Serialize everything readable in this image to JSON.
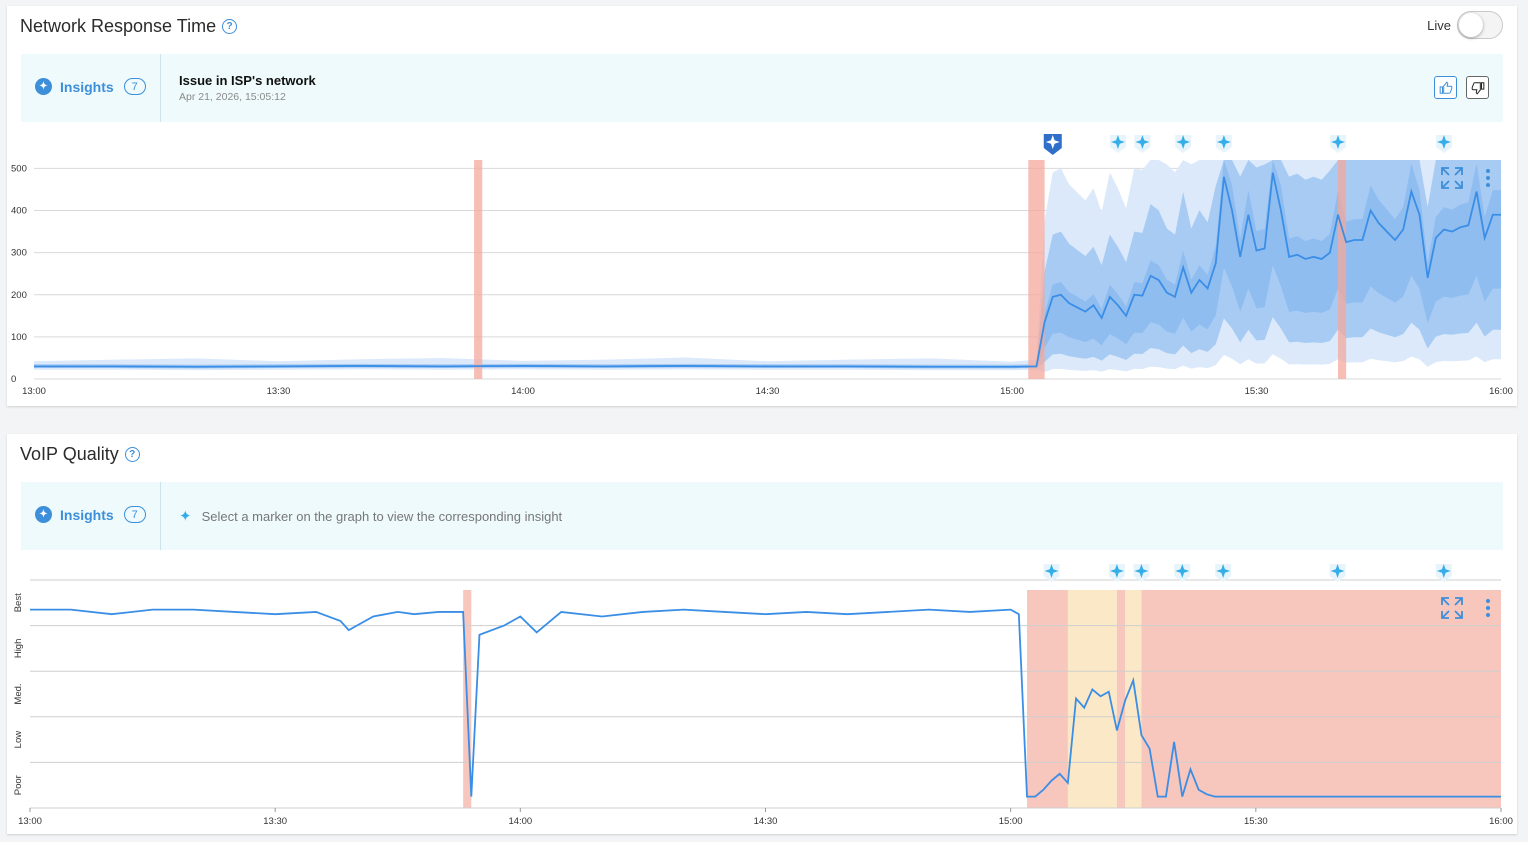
{
  "panel1": {
    "title": "Network Response Time",
    "live_label": "Live",
    "live_on": false,
    "insights": {
      "label": "Insights",
      "count": "7",
      "title": "Issue in ISP's network",
      "timestamp": "Apr 21, 2026, 15:05:12"
    }
  },
  "panel2": {
    "title": "VoIP Quality",
    "insights": {
      "label": "Insights",
      "count": "7",
      "hint": "Select a marker on the graph to view the corresponding insight"
    }
  },
  "icons": {
    "help": "help-circle-icon",
    "insights": "sparkle-logo-icon",
    "thumbs_up": "thumbs-up-icon",
    "thumbs_down": "thumbs-down-icon",
    "marker": "insight-marker-icon",
    "expand": "expand-icon",
    "menu": "more-vertical-icon"
  },
  "colors": {
    "accent": "#3d8fd9",
    "line": "#3a8ee6",
    "band_outer": "#dbe9fb",
    "band_mid": "#a8cbf4",
    "band_inner": "#8fbdf0",
    "issue_red": "#f6bcb2",
    "issue_red_strong": "#f3a89c",
    "warning_yellow": "#fbe8c6",
    "marker": "#35aee8"
  },
  "chart_data": [
    {
      "type": "area",
      "title": "Network Response Time",
      "x_ticks": [
        "13:00",
        "13:30",
        "14:00",
        "14:30",
        "15:00",
        "15:30",
        "16:00"
      ],
      "y_ticks": [
        0,
        100,
        200,
        300,
        400,
        500
      ],
      "xlim": [
        "13:00",
        "16:00"
      ],
      "ylim": [
        0,
        520
      ],
      "grid": true,
      "issue_ranges": [
        [
          "13:54",
          "13:55"
        ],
        [
          "15:02",
          "15:04"
        ],
        [
          "15:40",
          "15:41"
        ]
      ],
      "insight_markers": [
        "15:05",
        "15:13",
        "15:16",
        "15:21",
        "15:26",
        "15:40",
        "15:53"
      ],
      "selected_marker": "15:05",
      "series": [
        {
          "x": [
            "13:00",
            "13:10",
            "13:20",
            "13:30",
            "13:40",
            "13:50",
            "14:00",
            "14:10",
            "14:20",
            "14:30",
            "14:40",
            "14:50",
            "15:00",
            "15:03",
            "15:04",
            "15:05",
            "15:06",
            "15:07",
            "15:08",
            "15:09",
            "15:10",
            "15:11",
            "15:12",
            "15:13",
            "15:14",
            "15:15",
            "15:16",
            "15:17",
            "15:18",
            "15:19",
            "15:20",
            "15:21",
            "15:22",
            "15:23",
            "15:24",
            "15:25",
            "15:26",
            "15:27",
            "15:28",
            "15:29",
            "15:30",
            "15:31",
            "15:32",
            "15:33",
            "15:34",
            "15:35",
            "15:36",
            "15:37",
            "15:38",
            "15:39",
            "15:40",
            "15:41",
            "15:42",
            "15:43",
            "15:44",
            "15:45",
            "15:46",
            "15:47",
            "15:48",
            "15:49",
            "15:50",
            "15:51",
            "15:52",
            "15:53",
            "15:54",
            "15:55",
            "15:56",
            "15:57",
            "15:58",
            "15:59",
            "16:00"
          ],
          "values": [
            30,
            30,
            29,
            30,
            31,
            30,
            31,
            30,
            31,
            30,
            30,
            29,
            29,
            30,
            135,
            195,
            200,
            180,
            170,
            160,
            175,
            145,
            195,
            175,
            150,
            200,
            198,
            245,
            235,
            205,
            195,
            265,
            205,
            235,
            215,
            275,
            480,
            400,
            290,
            390,
            305,
            310,
            490,
            400,
            290,
            295,
            285,
            290,
            285,
            300,
            390,
            325,
            330,
            330,
            400,
            370,
            350,
            330,
            355,
            445,
            390,
            240,
            335,
            355,
            350,
            360,
            365,
            445,
            335,
            390,
            390
          ]
        }
      ]
    },
    {
      "type": "line",
      "title": "VoIP Quality",
      "x_ticks": [
        "13:00",
        "13:30",
        "14:00",
        "14:30",
        "15:00",
        "15:30",
        "16:00"
      ],
      "y_ticks": [
        "Poor",
        "Low",
        "Med.",
        "High",
        "Best"
      ],
      "xlim": [
        "13:00",
        "16:00"
      ],
      "grid": true,
      "issue_ranges": [
        [
          "13:53",
          "13:54"
        ],
        [
          "15:02",
          "15:07"
        ],
        [
          "15:13",
          "15:14"
        ],
        [
          "15:16",
          "16:00"
        ]
      ],
      "warning_ranges": [
        [
          "15:07",
          "15:13"
        ],
        [
          "15:14",
          "15:16"
        ]
      ],
      "insight_markers": [
        "15:05",
        "15:13",
        "15:16",
        "15:21",
        "15:26",
        "15:40",
        "15:53"
      ],
      "series": [
        {
          "x": [
            "13:00",
            "13:05",
            "13:10",
            "13:15",
            "13:20",
            "13:25",
            "13:30",
            "13:35",
            "13:38",
            "13:39",
            "13:42",
            "13:45",
            "13:47",
            "13:50",
            "13:53",
            "13:54",
            "13:55",
            "13:58",
            "14:00",
            "14:02",
            "14:05",
            "14:10",
            "14:15",
            "14:20",
            "14:25",
            "14:30",
            "14:35",
            "14:40",
            "14:45",
            "14:50",
            "14:55",
            "15:00",
            "15:01",
            "15:02",
            "15:03",
            "15:04",
            "15:05",
            "15:06",
            "15:07",
            "15:08",
            "15:09",
            "15:10",
            "15:11",
            "15:12",
            "15:13",
            "15:14",
            "15:15",
            "15:16",
            "15:17",
            "15:18",
            "15:19",
            "15:20",
            "15:21",
            "15:22",
            "15:23",
            "15:24",
            "15:25",
            "15:30",
            "15:40",
            "15:50",
            "16:00"
          ],
          "values": [
            4.35,
            4.35,
            4.25,
            4.35,
            4.35,
            4.3,
            4.25,
            4.3,
            4.1,
            3.9,
            4.2,
            4.3,
            4.25,
            4.3,
            4.3,
            0.25,
            3.8,
            4.0,
            4.2,
            3.85,
            4.3,
            4.2,
            4.3,
            4.35,
            4.3,
            4.25,
            4.3,
            4.25,
            4.3,
            4.35,
            4.3,
            4.35,
            4.25,
            0.25,
            0.25,
            0.4,
            0.6,
            0.75,
            0.55,
            2.4,
            2.2,
            2.6,
            2.45,
            2.55,
            1.7,
            2.35,
            2.8,
            1.6,
            1.3,
            0.25,
            0.25,
            1.45,
            0.25,
            0.85,
            0.4,
            0.3,
            0.25,
            0.25,
            0.25,
            0.25,
            0.25
          ]
        }
      ]
    }
  ]
}
